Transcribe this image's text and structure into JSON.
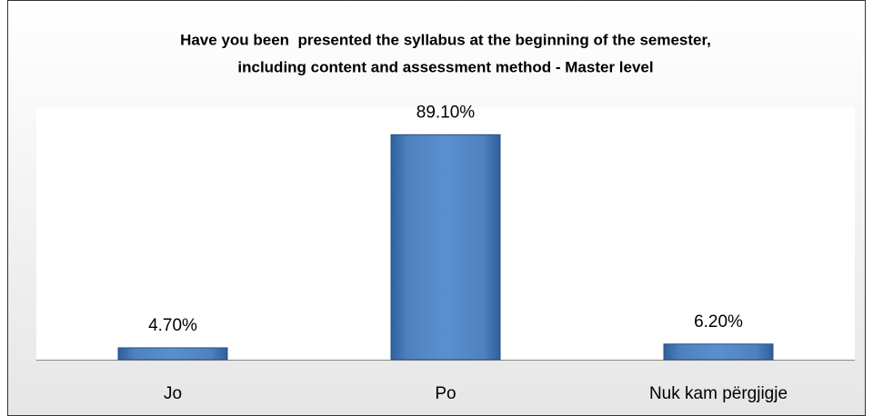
{
  "chart_data": {
    "type": "bar",
    "title": [
      "Have you been  presented the syllabus at the beginning of the semester,",
      "including content and assessment method - Master level"
    ],
    "categories": [
      "Jo",
      "Po",
      "Nuk kam përgjigje"
    ],
    "values": [
      4.7,
      89.1,
      6.2
    ],
    "value_labels": [
      "4.70%",
      "89.10%",
      "6.20%"
    ],
    "color": "#4f81bd",
    "ylim": [
      0,
      100
    ]
  }
}
